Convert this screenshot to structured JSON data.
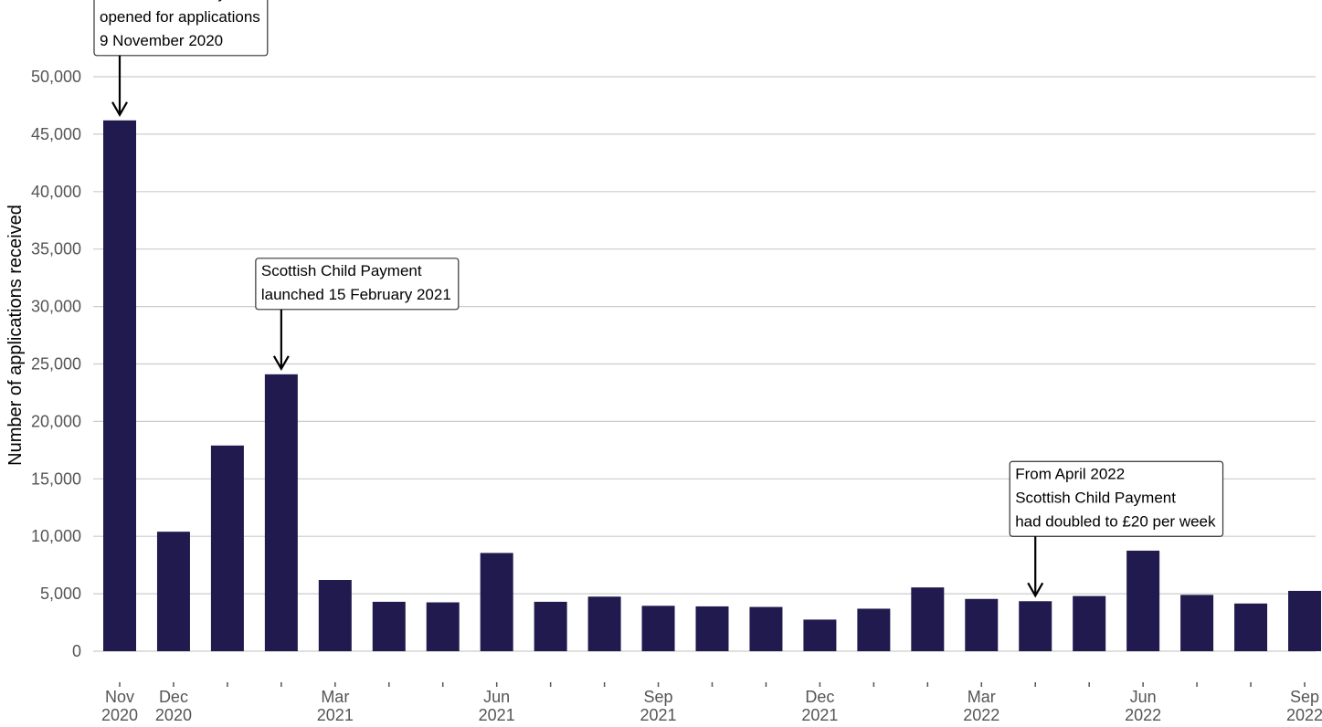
{
  "chart_data": {
    "type": "bar",
    "title": "",
    "xlabel": "",
    "ylabel": "Number of applications received",
    "ylim": [
      0,
      50000
    ],
    "yticks": [
      0,
      5000,
      10000,
      15000,
      20000,
      25000,
      30000,
      35000,
      40000,
      45000,
      50000
    ],
    "ytick_labels": [
      "0",
      "5,000",
      "10,000",
      "15,000",
      "20,000",
      "25,000",
      "30,000",
      "35,000",
      "40,000",
      "45,000",
      "50,000"
    ],
    "grid": true,
    "bar_color": "#201a4e",
    "gridline_color": "#cccccc",
    "categories": [
      "Nov 2020",
      "Dec 2020",
      "Jan 2021",
      "Feb 2021",
      "Mar 2021",
      "Apr 2021",
      "May 2021",
      "Jun 2021",
      "Jul 2021",
      "Aug 2021",
      "Sep 2021",
      "Oct 2021",
      "Nov 2021",
      "Dec 2021",
      "Jan 2022",
      "Feb 2022",
      "Mar 2022",
      "Apr 2022",
      "May 2022",
      "Jun 2022",
      "Jul 2022",
      "Aug 2022",
      "Sep 2022"
    ],
    "values": [
      46200,
      10400,
      17900,
      24100,
      6200,
      4300,
      4250,
      8550,
      4300,
      4750,
      3950,
      3900,
      3850,
      2750,
      3700,
      5550,
      4550,
      4350,
      4800,
      8750,
      4900,
      4150,
      5250
    ],
    "x_tick_labels": [
      {
        "index": 0,
        "lines": [
          "Nov",
          "2020"
        ]
      },
      {
        "index": 1,
        "lines": [
          "Dec",
          "2020"
        ]
      },
      {
        "index": 4,
        "lines": [
          "Mar",
          "2021"
        ]
      },
      {
        "index": 7,
        "lines": [
          "Jun",
          "2021"
        ]
      },
      {
        "index": 10,
        "lines": [
          "Sep",
          "2021"
        ]
      },
      {
        "index": 13,
        "lines": [
          "Dec",
          "2021"
        ]
      },
      {
        "index": 16,
        "lines": [
          "Mar",
          "2022"
        ]
      },
      {
        "index": 19,
        "lines": [
          "Jun",
          "2022"
        ]
      },
      {
        "index": 22,
        "lines": [
          "Sep",
          "2022"
        ]
      }
    ],
    "annotations": [
      {
        "index": 0,
        "lines": [
          "Scottish Child Payment",
          "opened for applications",
          "9 November 2020"
        ]
      },
      {
        "index": 3,
        "lines": [
          "Scottish Child Payment",
          "launched 15 February 2021"
        ]
      },
      {
        "index": 17,
        "lines": [
          "From April 2022",
          "Scottish Child Payment",
          "had doubled to £20 per week"
        ]
      }
    ]
  }
}
